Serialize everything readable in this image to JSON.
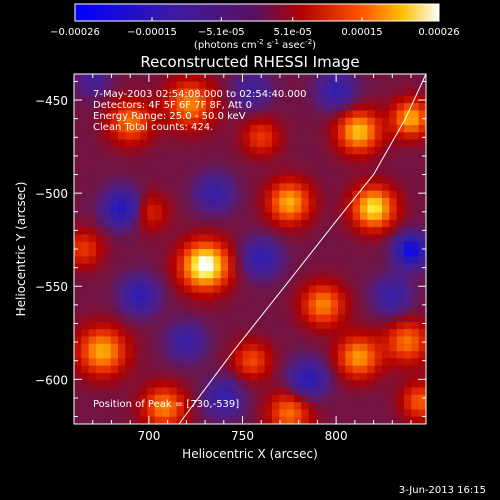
{
  "colorbar": {
    "ticks": [
      "-0.00026",
      "-0.00015",
      "-5.1e-05",
      "5.1e-05",
      "0.00015",
      "0.00026"
    ],
    "tick_values": [
      -0.00026,
      -0.00015,
      -5.1e-05,
      5.1e-05,
      0.00015,
      0.00026
    ],
    "units_prefix": "(photons cm",
    "units_exp1": "-2",
    "units_mid": " s",
    "units_exp2": "-1",
    "units_mid2": " asec",
    "units_exp3": "-2",
    "units_suffix": ")"
  },
  "plot": {
    "title": "Reconstructed RHESSI Image",
    "info_lines": [
      "7-May-2003 02:54:08.000 to 02:54:40.000",
      "Detectors: 4F 5F 6F 7F 8F, Att 0",
      "Energy Range: 25.0 - 50.0 keV",
      "Clean    Total counts: 424."
    ],
    "peak_label": "Position of Peak = [730,-539]"
  },
  "chart_data": {
    "type": "heatmap",
    "title": "Reconstructed RHESSI Image",
    "xlabel": "Heliocentric X (arcsec)",
    "ylabel": "Heliocentric Y (arcsec)",
    "xlim": [
      660,
      848
    ],
    "ylim": [
      -624,
      -436
    ],
    "x_ticks": [
      700,
      750,
      800
    ],
    "y_ticks": [
      -450,
      -500,
      -550,
      -600
    ],
    "colormap": "blue-purple-red-yellow-white",
    "value_range": [
      -0.00026,
      0.00026
    ],
    "sources": [
      {
        "x": 730,
        "y": -539,
        "v": 1.0,
        "s": 9
      },
      {
        "x": 820,
        "y": -508,
        "v": 0.85,
        "s": 8
      },
      {
        "x": 775,
        "y": -505,
        "v": 0.7,
        "s": 8
      },
      {
        "x": 812,
        "y": -467,
        "v": 0.75,
        "s": 8
      },
      {
        "x": 840,
        "y": -460,
        "v": 0.7,
        "s": 7
      },
      {
        "x": 722,
        "y": -452,
        "v": 0.6,
        "s": 9
      },
      {
        "x": 690,
        "y": -462,
        "v": 0.55,
        "s": 8
      },
      {
        "x": 675,
        "y": -585,
        "v": 0.7,
        "s": 9
      },
      {
        "x": 708,
        "y": -615,
        "v": 0.6,
        "s": 8
      },
      {
        "x": 793,
        "y": -560,
        "v": 0.6,
        "s": 8
      },
      {
        "x": 812,
        "y": -588,
        "v": 0.65,
        "s": 8
      },
      {
        "x": 838,
        "y": -580,
        "v": 0.55,
        "s": 8
      },
      {
        "x": 775,
        "y": -618,
        "v": 0.55,
        "s": 8
      },
      {
        "x": 755,
        "y": -590,
        "v": 0.45,
        "s": 7
      },
      {
        "x": 845,
        "y": -612,
        "v": 0.5,
        "s": 7
      },
      {
        "x": 665,
        "y": -530,
        "v": 0.4,
        "s": 7
      },
      {
        "x": 700,
        "y": -510,
        "v": 0.35,
        "s": 7
      },
      {
        "x": 760,
        "y": -470,
        "v": 0.4,
        "s": 7
      },
      {
        "x": 686,
        "y": -508,
        "v": -0.7,
        "s": 7
      },
      {
        "x": 840,
        "y": -531,
        "v": -0.9,
        "s": 6
      },
      {
        "x": 760,
        "y": -535,
        "v": -0.55,
        "s": 7
      },
      {
        "x": 735,
        "y": -500,
        "v": -0.45,
        "s": 7
      },
      {
        "x": 695,
        "y": -555,
        "v": -0.55,
        "s": 7
      },
      {
        "x": 785,
        "y": -600,
        "v": -0.6,
        "s": 7
      },
      {
        "x": 740,
        "y": -610,
        "v": -0.5,
        "s": 7
      },
      {
        "x": 720,
        "y": -580,
        "v": -0.45,
        "s": 7
      },
      {
        "x": 800,
        "y": -445,
        "v": -0.5,
        "s": 7
      },
      {
        "x": 830,
        "y": -555,
        "v": -0.45,
        "s": 7
      },
      {
        "x": 670,
        "y": -440,
        "v": -0.3,
        "s": 6
      },
      {
        "x": 755,
        "y": -445,
        "v": -0.35,
        "s": 7
      }
    ],
    "limb_curve": [
      [
        716,
        -624
      ],
      [
        745,
        -585
      ],
      [
        775,
        -547
      ],
      [
        800,
        -515
      ],
      [
        820,
        -490
      ],
      [
        837,
        -460
      ],
      [
        848,
        -436
      ]
    ],
    "peak": [
      730,
      -539
    ]
  },
  "footer": {
    "date_stamp": "3-Jun-2013 16:15"
  }
}
